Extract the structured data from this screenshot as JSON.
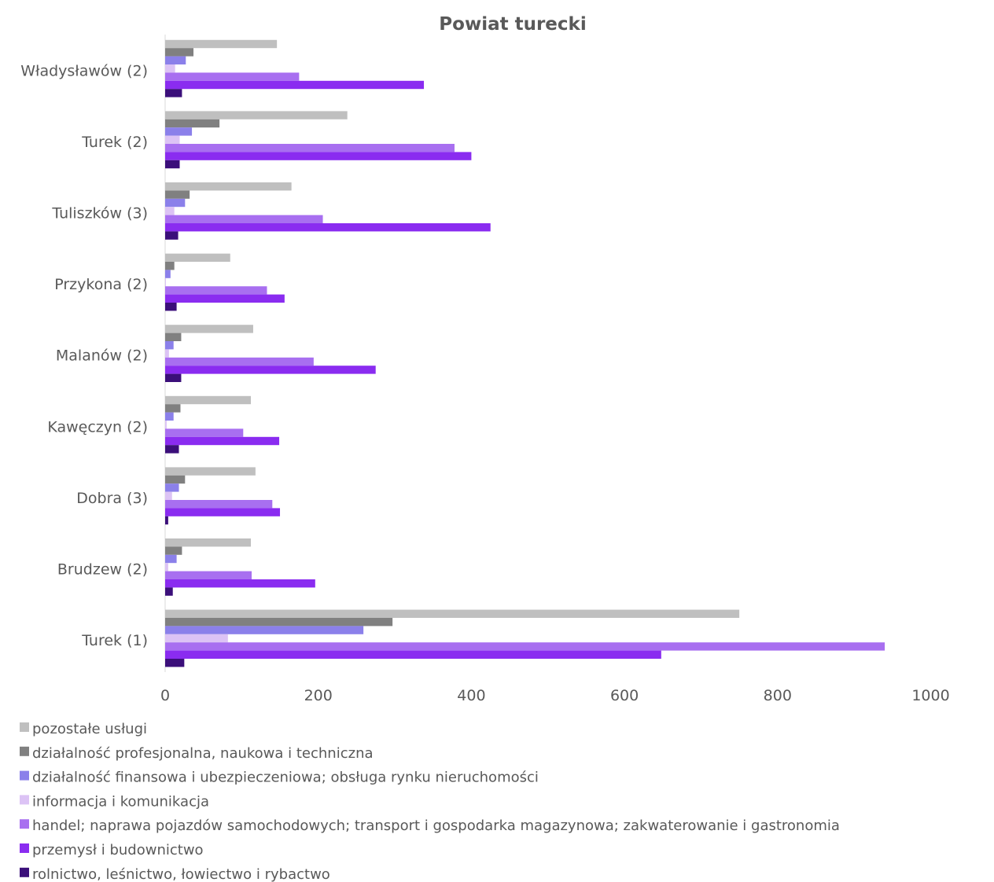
{
  "chart_data": {
    "type": "bar",
    "orientation": "horizontal",
    "title": "Powiat turecki",
    "xlabel": "",
    "ylabel": "",
    "xlim": [
      0,
      1000
    ],
    "x_ticks": [
      "0",
      "200",
      "400",
      "600",
      "800",
      "1000"
    ],
    "grid": false,
    "legend_position": "bottom",
    "categories": [
      "Turek (1)",
      "Brudzew (2)",
      "Dobra (3)",
      "Kawęczyn (2)",
      "Malanów (2)",
      "Przykona (2)",
      "Tuliszków (3)",
      "Turek (2)",
      "Władysławów (2)"
    ],
    "series": [
      {
        "name": "pozostałe usługi",
        "color": "#bfbfbf",
        "values": [
          750,
          112,
          118,
          112,
          115,
          85,
          165,
          238,
          146
        ]
      },
      {
        "name": "działalność profesjonalna, naukowa i techniczna",
        "color": "#808080",
        "values": [
          297,
          22,
          26,
          20,
          21,
          12,
          32,
          71,
          37
        ]
      },
      {
        "name": "działalność finansowa i ubezpieczeniowa; obsługa rynku nieruchomości",
        "color": "#8b80ea",
        "values": [
          259,
          15,
          18,
          11,
          11,
          7,
          26,
          35,
          27
        ]
      },
      {
        "name": "informacja i komunikacja",
        "color": "#dcc3f5",
        "values": [
          82,
          4,
          9,
          2,
          5,
          1,
          12,
          19,
          13
        ]
      },
      {
        "name": "handel; naprawa pojazdów samochodowych; transport i gospodarka magazynowa; zakwaterowanie i gastronomia",
        "color": "#a86ff0",
        "values": [
          940,
          113,
          140,
          102,
          194,
          133,
          206,
          378,
          175
        ]
      },
      {
        "name": "przemysł i budownictwo",
        "color": "#8a2cf0",
        "values": [
          648,
          196,
          150,
          149,
          275,
          156,
          425,
          400,
          338
        ]
      },
      {
        "name": "rolnictwo, leśnictwo, łowiectwo i rybactwo",
        "color": "#3b0f7a",
        "values": [
          25,
          10,
          4,
          18,
          21,
          15,
          17,
          19,
          22
        ]
      }
    ]
  }
}
